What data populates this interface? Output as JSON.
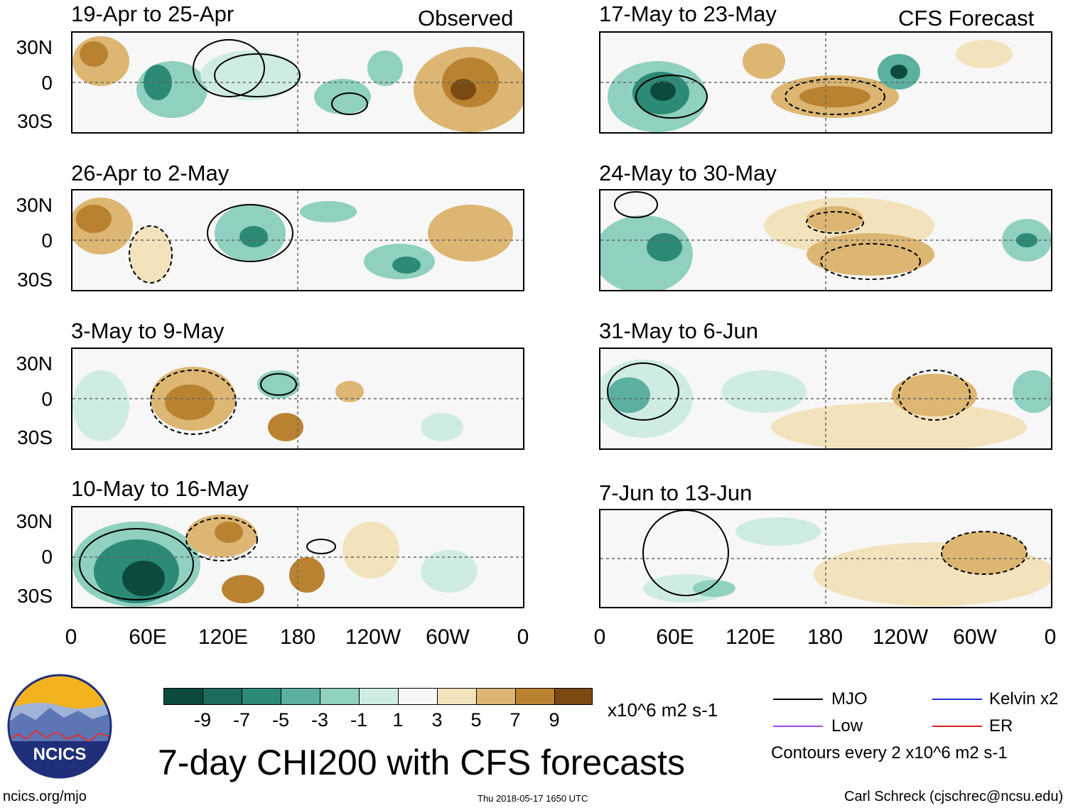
{
  "header": {
    "observed_label": "Observed",
    "forecast_label": "CFS Forecast"
  },
  "colors": {
    "dark_green": "#0b4a3c",
    "mid_green": "#2c8a77",
    "light_green": "#8fd0c0",
    "pale_green": "#cfece4",
    "white": "#f7f7f7",
    "pale_tan": "#f3e3bc",
    "light_brown": "#dcb672",
    "mid_brown": "#b98231",
    "dark_brown": "#7a4a12",
    "land_outline": "#7a7a7a",
    "grid_dash": "#666666",
    "mjo": "#000000",
    "kelvin": "#1f2ed6",
    "low": "#a14de0",
    "er": "#d9201c"
  },
  "panels": {
    "observed": [
      {
        "title": "19-Apr to 25-Apr"
      },
      {
        "title": "26-Apr to 2-May"
      },
      {
        "title": "3-May to 9-May"
      },
      {
        "title": "10-May to 16-May"
      }
    ],
    "forecast": [
      {
        "title": "17-May to 23-May"
      },
      {
        "title": "24-May to 30-May"
      },
      {
        "title": "31-May to 6-Jun"
      },
      {
        "title": "7-Jun to 13-Jun"
      }
    ]
  },
  "axis": {
    "y_labels": [
      "30N",
      "0",
      "30S"
    ],
    "x_labels": [
      "0",
      "60E",
      "120E",
      "180",
      "120W",
      "60W",
      "0"
    ]
  },
  "colorbar": {
    "colors": [
      "#0b4a3c",
      "#1d6b5c",
      "#2c8a77",
      "#5bb0a0",
      "#8fd0c0",
      "#cfece4",
      "#f7f7f7",
      "#f3e3bc",
      "#dcb672",
      "#b98231",
      "#7a4a12",
      "#4a2c0b"
    ],
    "ticks": [
      "-9",
      "-7",
      "-5",
      "-3",
      "-1",
      "1",
      "3",
      "5",
      "7",
      "9"
    ],
    "units": "x10^6 m2 s-1"
  },
  "legend": {
    "mjo": "MJO",
    "kelvin": "Kelvin x2",
    "low": "Low",
    "er": "ER",
    "contours_note": "Contours every 2 x10^6 m2 s-1"
  },
  "footer": {
    "logo_text": "NCICS",
    "main_title": "7-day CHI200 with CFS forecasts",
    "url": "ncics.org/mjo",
    "timestamp": "Thu 2018-05-17 1650 UTC",
    "credit": "Carl Schreck (cjschrec@ncsu.edu)"
  }
}
